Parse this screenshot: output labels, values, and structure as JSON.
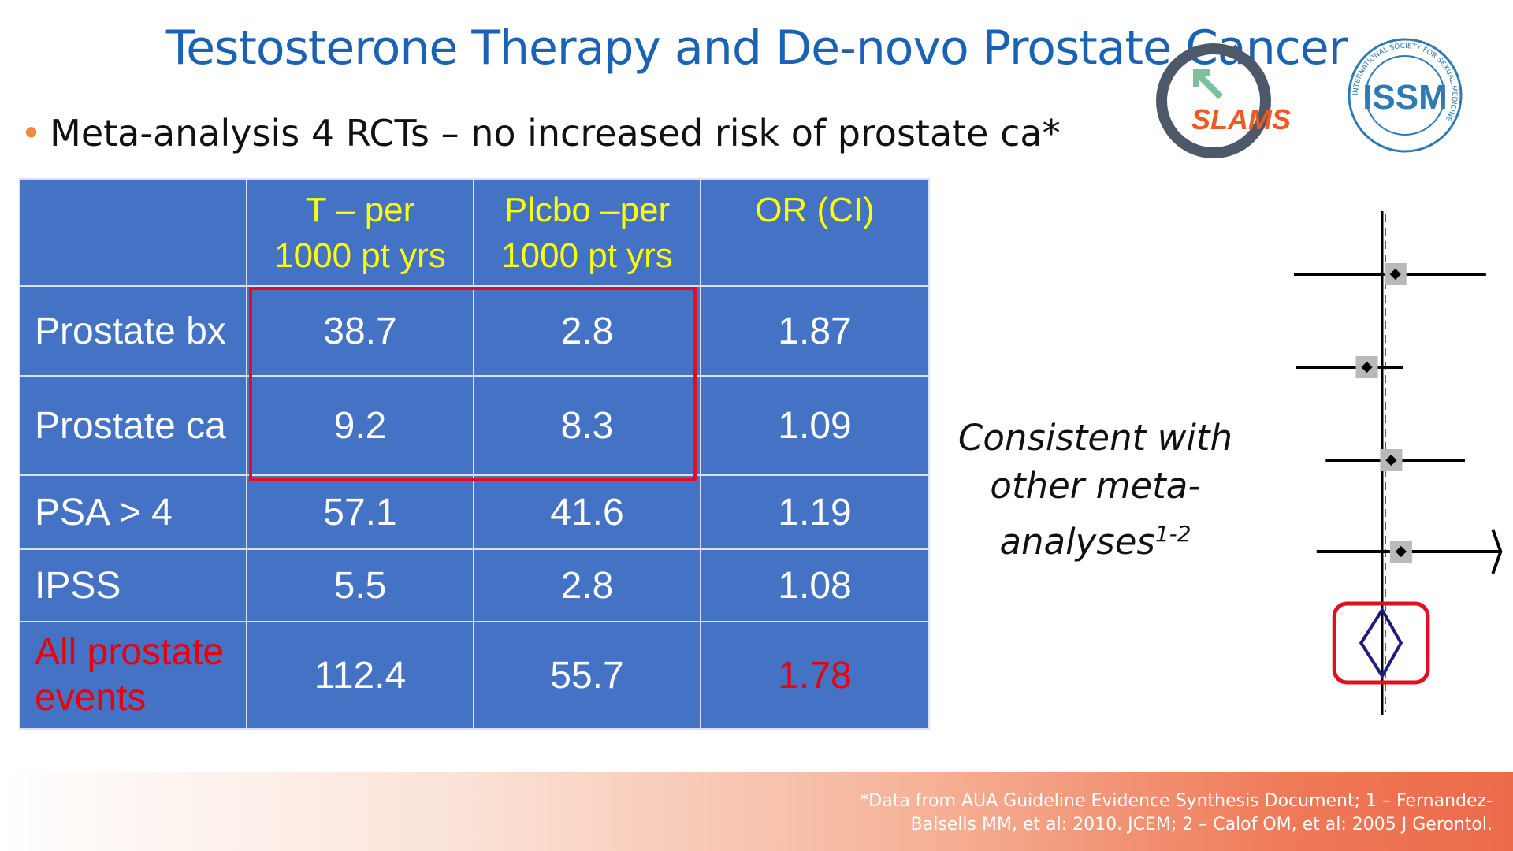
{
  "slide": {
    "title": "Testosterone Therapy and De-novo Prostate Cancer",
    "bullet": "Meta-analysis 4 RCTs – no increased risk of prostate ca*",
    "logos": {
      "slams_text": "SLAMS",
      "issm_text": "ISSM",
      "issm_ring_text": "INTERNATIONAL SOCIETY FOR SEXUAL MEDICINE"
    },
    "colors": {
      "title": "#1a62b3",
      "table_fill": "#4472c4",
      "header_text": "#ffff00",
      "highlight": "#e01020",
      "bullet": "#f08a3c"
    }
  },
  "table": {
    "headers": [
      "",
      "T – per",
      "1000 pt yrs",
      "Plcbo –per",
      "1000 pt yrs",
      "OR (CI)"
    ],
    "rows": [
      {
        "label": "Prostate bx",
        "t": "38.7",
        "placebo": "2.8",
        "or": "1.87"
      },
      {
        "label": "Prostate ca",
        "t": "9.2",
        "placebo": "8.3",
        "or": "1.09"
      },
      {
        "label": "PSA > 4",
        "t": "57.1",
        "placebo": "41.6",
        "or": "1.19"
      },
      {
        "label": "IPSS",
        "t": "5.5",
        "placebo": "2.8",
        "or": "1.08"
      },
      {
        "label_line1": "All prostate",
        "label_line2": "events",
        "t": "112.4",
        "placebo": "55.7",
        "or": "1.78"
      }
    ]
  },
  "note": {
    "line1": "Consistent with",
    "line2": "other meta-",
    "line3": "analyses",
    "sup": "1-2"
  },
  "footnote": {
    "line1": "*Data from AUA Guideline Evidence Synthesis Document; 1 – Fernandez-",
    "line2": "Balsells MM, et al: 2010. JCEM; 2 – Calof OM, et al: 2005 J Gerontol."
  },
  "chart_data": {
    "type": "forest",
    "studies": [
      {
        "point": 1.15,
        "low": 0.3,
        "high": 3.0
      },
      {
        "point": 0.85,
        "low": 0.4,
        "high": 1.25
      },
      {
        "point": 1.1,
        "low": 0.55,
        "high": 2.4
      },
      {
        "point": 1.22,
        "low": 0.5,
        "high": 3.5,
        "arrow": true
      }
    ],
    "pooled": {
      "point": 1.0,
      "low": 0.8,
      "high": 1.22
    },
    "reference_line": 1.0
  }
}
